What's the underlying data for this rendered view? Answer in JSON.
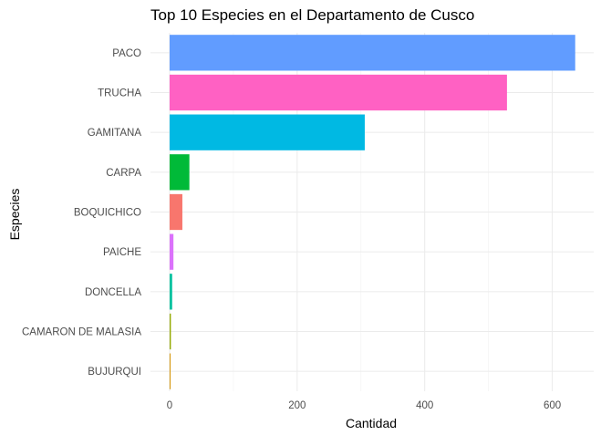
{
  "chart_data": {
    "type": "bar",
    "orientation": "horizontal",
    "title": "Top 10 Especies en el Departamento de Cusco",
    "xlabel": "Cantidad",
    "ylabel": "Especies",
    "categories": [
      "PACO",
      "TRUCHA",
      "GAMITANA",
      "CARPA",
      "BOQUICHICO",
      "PAICHE",
      "DONCELLA",
      "CAMARON DE MALASIA",
      "BUJURQUI"
    ],
    "values": [
      636,
      529,
      306,
      31,
      20,
      6,
      4,
      2,
      1
    ],
    "colors": [
      "#619CFF",
      "#FF61C3",
      "#00B9E3",
      "#00BA38",
      "#F8766D",
      "#DB72FB",
      "#00C19F",
      "#93AA00",
      "#D39200"
    ],
    "xlim": [
      -30,
      665
    ],
    "xticks": [
      0,
      200,
      400,
      600
    ],
    "xtick_labels": [
      "0",
      "200",
      "400",
      "600"
    ],
    "grid": true,
    "legend": "none"
  }
}
